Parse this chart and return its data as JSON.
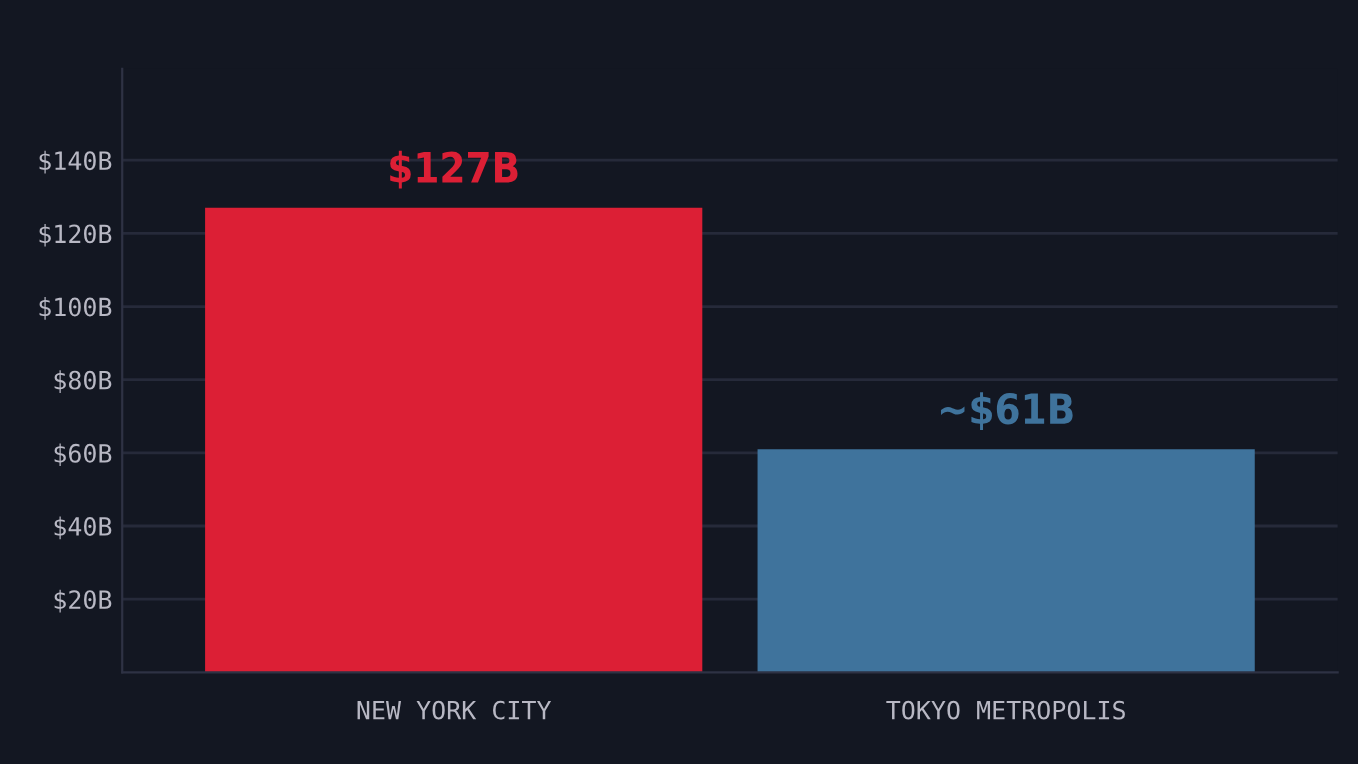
{
  "chart_data": {
    "type": "bar",
    "categories": [
      "NEW YORK CITY",
      "TOKYO METROPOLIS"
    ],
    "values": [
      127,
      61
    ],
    "colors": [
      "#dc1f35",
      "#3f739c"
    ],
    "value_labels": [
      "$127B",
      "~$61B"
    ],
    "ylim": [
      0,
      165
    ],
    "yticks": [
      {
        "value": 20,
        "label": "$20B"
      },
      {
        "value": 40,
        "label": "$40B"
      },
      {
        "value": 60,
        "label": "$60B"
      },
      {
        "value": 80,
        "label": "$80B"
      },
      {
        "value": 100,
        "label": "$100B"
      },
      {
        "value": 120,
        "label": "$120B"
      },
      {
        "value": 140,
        "label": "$140B"
      }
    ],
    "grid": "y"
  }
}
